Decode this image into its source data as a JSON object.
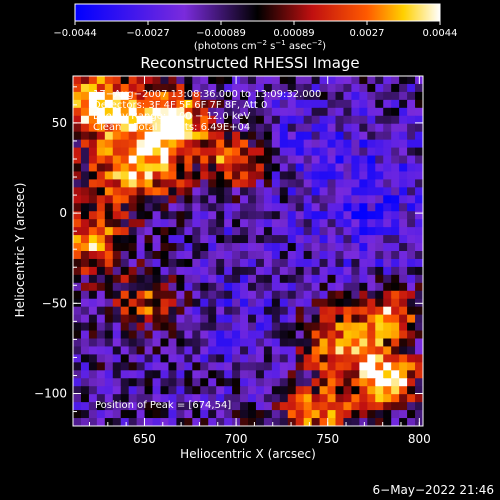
{
  "chart_data": {
    "type": "heatmap",
    "title": "Reconstructed RHESSI Image",
    "xlabel": "Heliocentric X (arcsec)",
    "ylabel": "Heliocentric Y (arcsec)",
    "xlim": [
      611,
      802
    ],
    "ylim": [
      -118,
      76
    ],
    "x_ticks": [
      650,
      700,
      750,
      800
    ],
    "x_tick_labels": [
      "650",
      "700",
      "750",
      "800"
    ],
    "y_ticks": [
      50,
      0,
      -50,
      -100
    ],
    "y_tick_labels": [
      "50",
      "0",
      "−50",
      "−100"
    ],
    "colorbar": {
      "min": -0.0044,
      "max": 0.0044,
      "tick_labels": [
        "−0.0044",
        "−0.0027",
        "−0.00089",
        "0.00089",
        "0.0027",
        "0.0044"
      ],
      "unit_prefix": "(photons cm",
      "unit_exp1": "−2",
      "unit_mid": " s",
      "unit_exp2": "−1",
      "unit_mid2": " asec",
      "unit_exp3": "−2",
      "unit_suffix": ")"
    },
    "annotations": [
      "17−Aug−2007 13:08:36.000 to 13:09:32.000",
      "Detectors: 3F 4F 5F 6F 7F 8F, Att 0",
      "Energy Range: 6.00 − 12.0 keV",
      "Clean    Total counts: 6.49E+04"
    ],
    "peak_label": "Position of Peak = [674,54]",
    "peak": {
      "x": 674,
      "y": 54
    },
    "hot_regions": [
      {
        "x": 625,
        "y": 60,
        "sx": 24,
        "sy": 18,
        "v": 0.0042
      },
      {
        "x": 665,
        "y": 50,
        "sx": 20,
        "sy": 18,
        "v": 0.0041
      },
      {
        "x": 645,
        "y": 25,
        "sx": 26,
        "sy": 20,
        "v": 0.0035
      },
      {
        "x": 700,
        "y": 30,
        "sx": 16,
        "sy": 14,
        "v": 0.0028
      },
      {
        "x": 620,
        "y": -15,
        "sx": 20,
        "sy": 18,
        "v": 0.003
      },
      {
        "x": 650,
        "y": -50,
        "sx": 20,
        "sy": 14,
        "v": 0.002
      },
      {
        "x": 760,
        "y": -75,
        "sx": 22,
        "sy": 22,
        "v": 0.0032
      },
      {
        "x": 785,
        "y": -92,
        "sx": 14,
        "sy": 14,
        "v": 0.0044
      },
      {
        "x": 745,
        "y": -110,
        "sx": 22,
        "sy": 12,
        "v": 0.003
      },
      {
        "x": 785,
        "y": -55,
        "sx": 16,
        "sy": 14,
        "v": 0.0025
      }
    ],
    "cold_regions": [
      {
        "x": 770,
        "y": 10,
        "sx": 35,
        "sy": 40,
        "v": -0.004
      },
      {
        "x": 735,
        "y": 40,
        "sx": 25,
        "sy": 20,
        "v": -0.0028
      },
      {
        "x": 700,
        "y": -60,
        "sx": 30,
        "sy": 30,
        "v": -0.0025
      },
      {
        "x": 700,
        "y": -20,
        "sx": 20,
        "sy": 20,
        "v": -0.002
      }
    ],
    "grid": false
  },
  "footer": {
    "timestamp": "6−May−2022 21:46"
  }
}
